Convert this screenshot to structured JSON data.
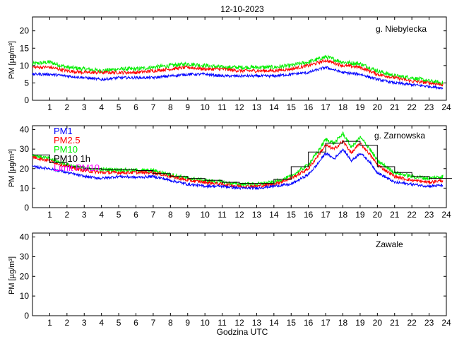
{
  "chart_data": {
    "type": "line",
    "title": "12-10-2023",
    "xlabel": "Godzina UTC",
    "x_ticks": [
      1,
      2,
      3,
      4,
      5,
      6,
      7,
      8,
      9,
      10,
      11,
      12,
      13,
      14,
      15,
      16,
      17,
      18,
      19,
      20,
      21,
      22,
      23,
      24
    ],
    "xlim": [
      0,
      24
    ],
    "colors": {
      "pm1": "#0000ff",
      "pm25": "#ff0000",
      "pm10": "#00ee00",
      "pm10_1h": "#000000",
      "limit": "#ff00ff"
    },
    "legend": [
      "PM1",
      "PM2.5",
      "PM10",
      "PM10 1h",
      "Limit PM10"
    ],
    "panels": [
      {
        "station": "g. Niebylecka",
        "ylabel": "PM [µg/m³]",
        "ylim": [
          0,
          24
        ],
        "y_ticks": [
          0,
          5,
          10,
          15,
          20
        ],
        "hours": [
          0,
          1,
          2,
          3,
          4,
          5,
          6,
          7,
          8,
          9,
          10,
          11,
          12,
          13,
          14,
          15,
          16,
          17,
          18,
          19,
          20,
          21,
          22,
          23,
          23.8
        ],
        "series": [
          {
            "name": "PM1",
            "values": [
              7.5,
              7.5,
              7,
              6.5,
              6,
              6.5,
              6.5,
              6.5,
              7,
              7.5,
              7.5,
              7,
              7,
              7,
              7,
              7.5,
              8,
              9.5,
              8,
              7.5,
              6,
              5,
              4.5,
              4,
              3.5
            ]
          },
          {
            "name": "PM2.5",
            "values": [
              9.5,
              9.5,
              8.5,
              8,
              8,
              8,
              8,
              8.5,
              9,
              9.5,
              9,
              9,
              8.5,
              8.5,
              8.5,
              9,
              10,
              11.5,
              10,
              9.5,
              7.5,
              6.5,
              5.5,
              5,
              4.5
            ]
          },
          {
            "name": "PM10",
            "values": [
              10.5,
              11,
              9.5,
              9,
              8.5,
              9,
              9,
              9.5,
              10,
              10.5,
              10,
              9.5,
              9.5,
              9.5,
              9.5,
              10,
              11,
              12.5,
              11,
              10.5,
              8.5,
              7,
              6.5,
              5.5,
              5
            ]
          }
        ]
      },
      {
        "station": "g. Zarnowska",
        "ylabel": "PM [µg/m³]",
        "ylim": [
          0,
          42
        ],
        "y_ticks": [
          0,
          10,
          20,
          30,
          40
        ],
        "hours": [
          0,
          1,
          2,
          3,
          4,
          5,
          6,
          7,
          8,
          9,
          10,
          11,
          12,
          13,
          14,
          15,
          16,
          16.5,
          17,
          17.5,
          18,
          18.5,
          19,
          19.5,
          20,
          21,
          22,
          23,
          23.8
        ],
        "series": [
          {
            "name": "PM1",
            "values": [
              21,
              20,
              18,
              16,
              15,
              16,
              15.5,
              16,
              14,
              12,
              11,
              11,
              10,
              10,
              11,
              12,
              17,
              22,
              28,
              25,
              30,
              24,
              28,
              24,
              18,
              13,
              12,
              11,
              11.5
            ]
          },
          {
            "name": "PM2.5",
            "values": [
              26,
              24,
              21,
              19,
              18,
              18,
              18,
              18,
              16,
              14,
              13,
              12,
              11,
              11,
              12,
              15,
              20,
              26,
              32,
              30,
              34,
              28,
              33,
              28,
              22,
              16,
              14,
              13,
              14
            ]
          },
          {
            "name": "PM10",
            "values": [
              27,
              25,
              22,
              20,
              19.5,
              19.5,
              19,
              19,
              17,
              15,
              14,
              13,
              12,
              12,
              13,
              16,
              22,
              28,
              35,
              33,
              38,
              31,
              36,
              31,
              24,
              18,
              16,
              15,
              16
            ]
          },
          {
            "name": "PM10 1h",
            "values": [
              27,
              23,
              21,
              20,
              19.5,
              19.5,
              19,
              17.5,
              16,
              15,
              14,
              13,
              12.5,
              12.5,
              14.5,
              21,
              28.5,
              28.5,
              33,
              33,
              34,
              34,
              32,
              32,
              21,
              18,
              16,
              15,
              15
            ]
          }
        ]
      },
      {
        "station": "Zawale",
        "ylabel": "PM [µg/m³]",
        "ylim": [
          0,
          42
        ],
        "y_ticks": [
          0,
          10,
          20,
          30,
          40
        ],
        "hours": [],
        "series": []
      }
    ]
  }
}
